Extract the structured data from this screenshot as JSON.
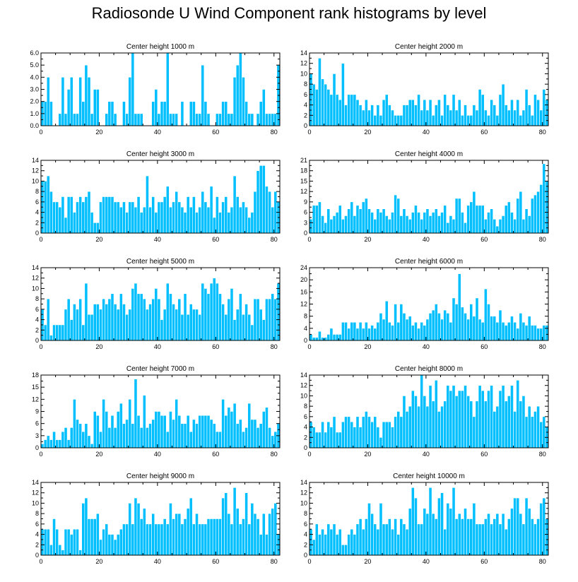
{
  "title": "Radiosonde U Wind Component rank histograms by level",
  "colors": {
    "bar": "#00bfff",
    "bar_edge": "#ffffff",
    "axis": "#000000"
  },
  "chart_data": [
    {
      "type": "bar",
      "title": "Center height 1000 m",
      "xlim": [
        0,
        82
      ],
      "ylim": [
        0,
        6
      ],
      "xticks": [
        0,
        20,
        40,
        60,
        80
      ],
      "yticks": [
        0,
        1,
        2,
        3,
        4,
        5,
        6
      ],
      "yticklabels": [
        "0.0",
        "1.0",
        "2.0",
        "3.0",
        "4.0",
        "5.0",
        "6.0"
      ],
      "ytick_side": "left",
      "values": [
        2,
        2,
        4,
        2,
        0,
        0,
        1,
        4,
        1,
        3,
        4,
        1,
        1,
        4,
        2,
        5,
        4,
        1,
        3,
        3,
        0,
        0,
        1,
        2,
        2,
        1,
        0,
        0,
        2,
        1,
        4,
        6,
        1,
        1,
        1,
        0,
        0,
        0,
        2,
        3,
        1,
        2,
        2,
        6,
        1,
        1,
        1,
        0,
        2,
        0,
        0,
        2,
        2,
        1,
        1,
        5,
        2,
        1,
        0,
        0,
        1,
        1,
        2,
        2,
        1,
        1,
        4,
        5,
        6,
        4,
        2,
        1,
        1,
        0,
        1,
        2,
        3,
        1,
        1,
        1,
        1,
        5
      ]
    },
    {
      "type": "bar",
      "title": "Center height 2000 m",
      "xlim": [
        0,
        82
      ],
      "ylim": [
        0,
        14
      ],
      "xticks": [
        0,
        20,
        40,
        60,
        80
      ],
      "yticks": [
        0,
        2,
        4,
        6,
        8,
        10,
        12,
        14
      ],
      "yticklabels": [
        "0",
        "2",
        "4",
        "6",
        "8",
        "10",
        "12",
        "14"
      ],
      "ytick_side": "left",
      "values": [
        10,
        8,
        7,
        13,
        9,
        8,
        7,
        6,
        10,
        6,
        5,
        12,
        4,
        6,
        6,
        6,
        5,
        4,
        3,
        5,
        3,
        4,
        2,
        4,
        2,
        5,
        6,
        4,
        3,
        2,
        2,
        2,
        4,
        4,
        5,
        5,
        4,
        6,
        3,
        5,
        3,
        5,
        2,
        4,
        5,
        2,
        6,
        4,
        3,
        6,
        3,
        5,
        2,
        4,
        2,
        2,
        4,
        3,
        7,
        6,
        3,
        2,
        5,
        4,
        2,
        6,
        8,
        4,
        3,
        5,
        3,
        5,
        2,
        3,
        7,
        4,
        2,
        6,
        5,
        3,
        7,
        5
      ]
    },
    {
      "type": "bar",
      "title": "Center height 3000 m",
      "xlim": [
        0,
        82
      ],
      "ylim": [
        0,
        14
      ],
      "xticks": [
        0,
        20,
        40,
        60,
        80
      ],
      "yticks": [
        0,
        2,
        4,
        6,
        8,
        10,
        12,
        14
      ],
      "yticklabels": [
        "0",
        "2",
        "4",
        "6",
        "8",
        "10",
        "12",
        "14"
      ],
      "ytick_side": "left",
      "values": [
        10,
        10,
        11,
        8,
        6,
        6,
        5,
        7,
        3,
        7,
        7,
        4,
        6,
        7,
        6,
        7,
        8,
        4,
        2,
        2,
        6,
        7,
        7,
        7,
        7,
        6,
        6,
        5,
        6,
        4,
        6,
        6,
        5,
        7,
        4,
        5,
        11,
        5,
        7,
        4,
        6,
        6,
        7,
        9,
        5,
        6,
        8,
        6,
        5,
        4,
        7,
        5,
        7,
        4,
        5,
        8,
        6,
        5,
        9,
        3,
        7,
        4,
        6,
        7,
        4,
        5,
        11,
        7,
        5,
        6,
        5,
        3,
        4,
        8,
        12,
        13,
        13,
        9,
        8,
        5,
        8,
        6
      ]
    },
    {
      "type": "bar",
      "title": "Center height 4000 m",
      "xlim": [
        0,
        82
      ],
      "ylim": [
        0,
        21
      ],
      "xticks": [
        0,
        20,
        40,
        60,
        80
      ],
      "yticks": [
        0,
        3,
        6,
        9,
        12,
        15,
        18,
        21
      ],
      "yticklabels": [
        "0",
        "3",
        "6",
        "9",
        "12",
        "15",
        "18",
        "21"
      ],
      "ytick_side": "left",
      "values": [
        4,
        8,
        8,
        9,
        5,
        3,
        7,
        4,
        5,
        6,
        8,
        4,
        5,
        7,
        9,
        5,
        8,
        7,
        9,
        10,
        7,
        6,
        4,
        7,
        6,
        7,
        5,
        4,
        6,
        11,
        10,
        5,
        7,
        5,
        4,
        6,
        8,
        6,
        4,
        6,
        7,
        5,
        6,
        7,
        5,
        6,
        8,
        3,
        5,
        4,
        10,
        10,
        6,
        3,
        8,
        9,
        12,
        8,
        8,
        8,
        4,
        6,
        7,
        4,
        2,
        4,
        5,
        8,
        9,
        6,
        4,
        10,
        12,
        4,
        7,
        5,
        10,
        11,
        12,
        14,
        20,
        15
      ]
    },
    {
      "type": "bar",
      "title": "Center height 5000 m",
      "xlim": [
        0,
        82
      ],
      "ylim": [
        0,
        14
      ],
      "xticks": [
        0,
        20,
        40,
        60,
        80
      ],
      "yticks": [
        0,
        2,
        4,
        6,
        8,
        10,
        12,
        14
      ],
      "yticklabels": [
        "0",
        "2",
        "4",
        "6",
        "8",
        "10",
        "12",
        "14"
      ],
      "ytick_side": "left",
      "values": [
        6,
        3,
        8,
        1,
        3,
        3,
        3,
        3,
        6,
        8,
        4,
        7,
        6,
        8,
        3,
        11,
        5,
        5,
        7,
        7,
        6,
        8,
        7,
        8,
        9,
        7,
        6,
        9,
        7,
        5,
        6,
        10,
        11,
        9,
        9,
        8,
        6,
        7,
        8,
        10,
        8,
        4,
        6,
        11,
        9,
        7,
        6,
        8,
        5,
        9,
        5,
        7,
        6,
        6,
        5,
        11,
        10,
        9,
        11,
        12,
        11,
        9,
        7,
        5,
        8,
        10,
        4,
        6,
        9,
        5,
        7,
        5,
        3,
        8,
        8,
        6,
        4,
        8,
        8,
        9,
        8,
        11
      ]
    },
    {
      "type": "bar",
      "title": "Center height 6000 m",
      "xlim": [
        0,
        82
      ],
      "ylim": [
        0,
        24
      ],
      "xticks": [
        0,
        20,
        40,
        60,
        80
      ],
      "yticks": [
        0,
        4,
        8,
        12,
        16,
        20,
        24
      ],
      "yticklabels": [
        "0",
        "4",
        "8",
        "12",
        "16",
        "20",
        "24"
      ],
      "ytick_side": "left",
      "values": [
        2,
        1,
        1,
        3,
        1,
        1,
        2,
        4,
        2,
        2,
        2,
        6,
        6,
        4,
        6,
        6,
        4,
        6,
        4,
        6,
        4,
        5,
        4,
        6,
        9,
        7,
        13,
        6,
        5,
        12,
        6,
        12,
        9,
        7,
        8,
        5,
        6,
        4,
        6,
        5,
        7,
        9,
        10,
        12,
        9,
        7,
        10,
        9,
        6,
        14,
        12,
        22,
        11,
        9,
        7,
        12,
        8,
        14,
        7,
        6,
        17,
        12,
        8,
        8,
        6,
        10,
        6,
        5,
        6,
        8,
        6,
        4,
        9,
        6,
        5,
        8,
        5,
        5,
        4,
        4,
        5,
        5
      ]
    },
    {
      "type": "bar",
      "title": "Center height 7000 m",
      "xlim": [
        0,
        82
      ],
      "ylim": [
        0,
        18
      ],
      "xticks": [
        0,
        20,
        40,
        60,
        80
      ],
      "yticks": [
        0,
        3,
        6,
        9,
        12,
        15,
        18
      ],
      "yticklabels": [
        "0",
        "3",
        "6",
        "9",
        "12",
        "15",
        "18"
      ],
      "ytick_side": "left",
      "values": [
        1,
        2,
        3,
        2,
        4,
        2,
        2,
        4,
        5,
        2,
        5,
        12,
        7,
        6,
        4,
        6,
        3,
        1,
        9,
        8,
        4,
        12,
        9,
        5,
        8,
        5,
        9,
        11,
        6,
        7,
        12,
        6,
        17,
        8,
        5,
        13,
        5,
        6,
        7,
        9,
        9,
        8,
        8,
        4,
        9,
        7,
        12,
        8,
        6,
        6,
        8,
        4,
        7,
        6,
        8,
        8,
        8,
        8,
        7,
        6,
        4,
        4,
        12,
        8,
        10,
        9,
        11,
        6,
        7,
        4,
        5,
        11,
        7,
        7,
        5,
        6,
        9,
        10,
        5,
        3,
        4,
        6
      ]
    },
    {
      "type": "bar",
      "title": "Center height 8000 m",
      "xlim": [
        0,
        82
      ],
      "ylim": [
        0,
        14
      ],
      "xticks": [
        0,
        20,
        40,
        60,
        80
      ],
      "yticks": [
        0,
        2,
        4,
        6,
        8,
        10,
        12,
        14
      ],
      "yticklabels": [
        "0",
        "2",
        "4",
        "6",
        "8",
        "10",
        "12",
        "14"
      ],
      "ytick_side": "left",
      "values": [
        5,
        4,
        3,
        3,
        5,
        3,
        5,
        4,
        6,
        3,
        3,
        5,
        6,
        6,
        5,
        4,
        6,
        4,
        6,
        7,
        6,
        5,
        6,
        4,
        2,
        5,
        5,
        5,
        4,
        6,
        7,
        6,
        10,
        7,
        8,
        11,
        10,
        8,
        14,
        10,
        8,
        12,
        9,
        13,
        7,
        8,
        9,
        12,
        11,
        12,
        10,
        11,
        11,
        12,
        10,
        9,
        6,
        9,
        12,
        11,
        9,
        11,
        12,
        7,
        8,
        11,
        12,
        9,
        10,
        12,
        7,
        13,
        9,
        10,
        6,
        8,
        6,
        7,
        8,
        5,
        6,
        4
      ]
    },
    {
      "type": "bar",
      "title": "Center height 9000 m",
      "xlim": [
        0,
        82
      ],
      "ylim": [
        0,
        14
      ],
      "xticks": [
        0,
        20,
        40,
        60,
        80
      ],
      "yticks": [
        0,
        2,
        4,
        6,
        8,
        10,
        12,
        14
      ],
      "yticklabels": [
        "0",
        "2",
        "4",
        "6",
        "8",
        "10",
        "12",
        "14"
      ],
      "ytick_side": "left",
      "values": [
        5,
        5,
        5,
        2,
        7,
        5,
        2,
        1,
        5,
        5,
        4,
        5,
        5,
        1,
        10,
        11,
        7,
        7,
        7,
        8,
        3,
        5,
        6,
        4,
        4,
        3,
        4,
        5,
        6,
        6,
        10,
        6,
        11,
        10,
        7,
        9,
        6,
        6,
        8,
        6,
        6,
        6,
        7,
        6,
        10,
        7,
        8,
        8,
        6,
        7,
        9,
        11,
        6,
        8,
        6,
        6,
        6,
        7,
        7,
        7,
        7,
        7,
        11,
        12,
        8,
        6,
        13,
        9,
        6,
        7,
        12,
        6,
        10,
        8,
        7,
        4,
        8,
        4,
        8,
        9,
        10,
        4
      ]
    },
    {
      "type": "bar",
      "title": "Center height 10000 m",
      "xlim": [
        0,
        82
      ],
      "ylim": [
        0,
        14
      ],
      "xticks": [
        0,
        20,
        40,
        60,
        80
      ],
      "yticks": [
        0,
        2,
        4,
        6,
        8,
        10,
        12,
        14
      ],
      "yticklabels": [
        "0",
        "2",
        "4",
        "6",
        "8",
        "10",
        "12",
        "14"
      ],
      "ytick_side": "left",
      "values": [
        5,
        3,
        6,
        4,
        5,
        4,
        6,
        5,
        6,
        4,
        5,
        2,
        2,
        4,
        5,
        4,
        6,
        7,
        5,
        7,
        10,
        8,
        6,
        5,
        10,
        6,
        6,
        7,
        5,
        7,
        4,
        7,
        6,
        5,
        9,
        13,
        11,
        6,
        6,
        9,
        8,
        13,
        8,
        7,
        11,
        12,
        5,
        10,
        9,
        13,
        7,
        8,
        7,
        9,
        7,
        7,
        10,
        6,
        6,
        6,
        7,
        8,
        6,
        7,
        8,
        6,
        8,
        5,
        7,
        9,
        11,
        11,
        8,
        6,
        11,
        9,
        7,
        6,
        7,
        10,
        11,
        7
      ]
    }
  ]
}
